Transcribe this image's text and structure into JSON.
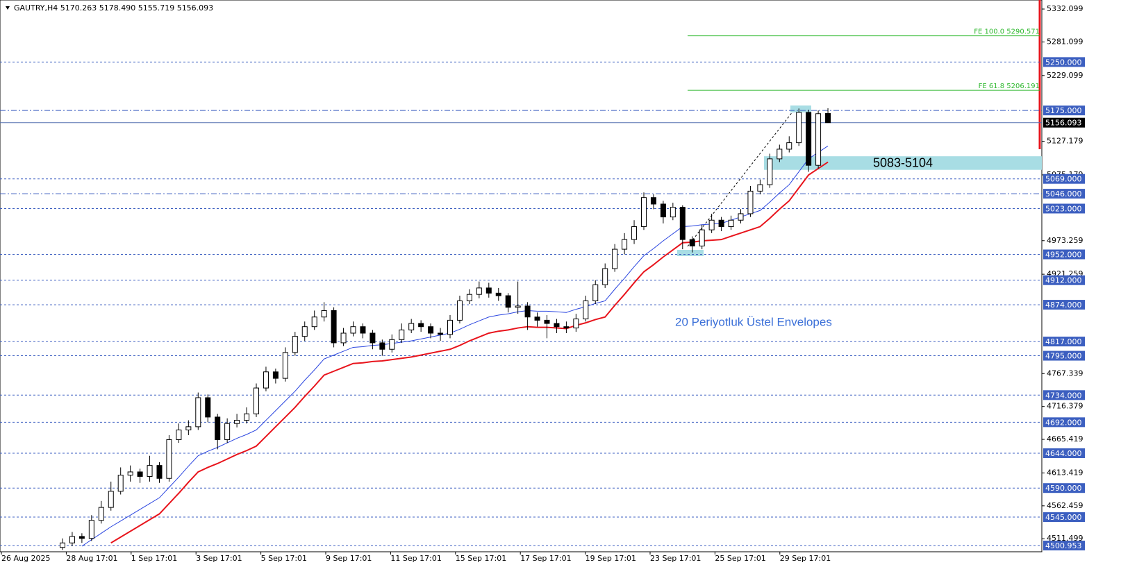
{
  "chart_data": {
    "type": "candlestick",
    "title": "GAUTRY,H4  5170.263 5178.490 5155.719 5156.093",
    "annotation": "20 Periyotluk Üstel Envelopes",
    "zone": {
      "low": 5083,
      "high": 5104,
      "label": "5083-5104",
      "color": "#a8dde4"
    },
    "ylim": [
      4491.3,
      5346.1
    ],
    "yticks": [
      5332.099,
      5281.099,
      5229.099,
      5127.179,
      5075.179,
      4973.259,
      4921.259,
      4767.339,
      4716.379,
      4665.419,
      4613.419,
      4562.459,
      4511.499
    ],
    "levels": [
      {
        "value": 5250,
        "label": "5250.000"
      },
      {
        "value": 5175,
        "label": "5175.000",
        "style": "dashdot"
      },
      {
        "value": 5069,
        "label": "5069.000"
      },
      {
        "value": 5046,
        "label": "5046.000",
        "style": "dashdot"
      },
      {
        "value": 5023,
        "label": "5023.000"
      },
      {
        "value": 4952,
        "label": "4952.000"
      },
      {
        "value": 4912,
        "label": "4912.000"
      },
      {
        "value": 4874,
        "label": "4874.000"
      },
      {
        "value": 4817,
        "label": "4817.000"
      },
      {
        "value": 4795,
        "label": "4795.000"
      },
      {
        "value": 4734,
        "label": "4734.000"
      },
      {
        "value": 4692,
        "label": "4692.000"
      },
      {
        "value": 4644,
        "label": "4644.000"
      },
      {
        "value": 4590,
        "label": "4590.000"
      },
      {
        "value": 4545,
        "label": "4545.000"
      },
      {
        "value": 4500.953,
        "label": "4500.953"
      }
    ],
    "current": {
      "value": 5156.093,
      "label": "5156.093"
    },
    "fib": [
      {
        "value": 5290.571,
        "label": "FE 100.0 5290.571"
      },
      {
        "value": 5206.191,
        "label": "FE 61.8 5206.191"
      }
    ],
    "fib_color": "#2eb82e",
    "level_color": "#3c5fc0",
    "x_labels": [
      "26 Aug 2025",
      "28 Aug 17:01",
      "1 Sep 17:01",
      "3 Sep 17:01",
      "5 Sep 17:01",
      "9 Sep 17:01",
      "11 Sep 17:01",
      "15 Sep 17:01",
      "17 Sep 17:01",
      "19 Sep 17:01",
      "23 Sep 17:01",
      "25 Sep 17:01",
      "29 Sep 17:01"
    ],
    "open": [
      4498,
      4505,
      4515,
      4512,
      4540,
      4560,
      4585,
      4610,
      4615,
      4608,
      4625,
      4605,
      4665,
      4680,
      4685,
      4730,
      4700,
      4665,
      4690,
      4695,
      4705,
      4745,
      4770,
      4760,
      4800,
      4825,
      4840,
      4855,
      4865,
      4815,
      4830,
      4840,
      4830,
      4815,
      4805,
      4820,
      4835,
      4845,
      4840,
      4830,
      4828,
      4850,
      4880,
      4890,
      4900,
      4892,
      4888,
      4870,
      4872,
      4855,
      4850,
      4845,
      4840,
      4838,
      4852,
      4880,
      4905,
      4930,
      4960,
      4975,
      4995,
      5040,
      5030,
      5010,
      5025,
      4975,
      4965,
      4990,
      5005,
      4995,
      5005,
      5015,
      5050,
      5060,
      5100,
      5115,
      5125,
      5172,
      5090,
      5170.263
    ],
    "high": [
      4512,
      4522,
      4520,
      4548,
      4570,
      4600,
      4622,
      4625,
      4620,
      4640,
      4630,
      4672,
      4690,
      4695,
      4738,
      4735,
      4705,
      4698,
      4705,
      4715,
      4752,
      4778,
      4775,
      4808,
      4832,
      4848,
      4865,
      4878,
      4870,
      4838,
      4848,
      4845,
      4835,
      4820,
      4828,
      4845,
      4852,
      4850,
      4845,
      4838,
      4858,
      4888,
      4898,
      4910,
      4908,
      4900,
      4892,
      4910,
      4878,
      4862,
      4858,
      4852,
      4848,
      4860,
      4888,
      4912,
      4938,
      4968,
      4985,
      5005,
      5048,
      5045,
      5035,
      5032,
      5028,
      4980,
      4998,
      5015,
      5010,
      5012,
      5022,
      5058,
      5068,
      5108,
      5122,
      5135,
      5178,
      5176,
      5175,
      5178.49
    ],
    "low": [
      4494,
      4500,
      4505,
      4508,
      4535,
      4555,
      4580,
      4600,
      4598,
      4600,
      4598,
      4600,
      4660,
      4672,
      4680,
      4692,
      4650,
      4660,
      4684,
      4690,
      4700,
      4740,
      4752,
      4755,
      4795,
      4818,
      4835,
      4848,
      4808,
      4810,
      4825,
      4822,
      4805,
      4795,
      4800,
      4815,
      4830,
      4832,
      4822,
      4818,
      4822,
      4845,
      4875,
      4884,
      4885,
      4880,
      4862,
      4860,
      4835,
      4840,
      4822,
      4830,
      4830,
      4832,
      4848,
      4875,
      4900,
      4925,
      4952,
      4968,
      4990,
      5022,
      5000,
      5005,
      4960,
      4955,
      4960,
      4985,
      4988,
      4990,
      5000,
      5010,
      5045,
      5055,
      5095,
      5110,
      5120,
      5080,
      5085,
      5155.719
    ],
    "close": [
      4505,
      4515,
      4512,
      4540,
      4560,
      4585,
      4610,
      4615,
      4608,
      4625,
      4605,
      4665,
      4680,
      4685,
      4730,
      4700,
      4665,
      4690,
      4695,
      4705,
      4745,
      4770,
      4760,
      4800,
      4825,
      4840,
      4855,
      4865,
      4815,
      4830,
      4840,
      4830,
      4815,
      4805,
      4820,
      4835,
      4845,
      4840,
      4830,
      4828,
      4850,
      4880,
      4890,
      4900,
      4892,
      4888,
      4870,
      4872,
      4855,
      4850,
      4845,
      4840,
      4838,
      4852,
      4880,
      4905,
      4930,
      4960,
      4975,
      4995,
      5040,
      5030,
      5010,
      5025,
      4975,
      4965,
      4990,
      5005,
      4995,
      5005,
      5015,
      5050,
      5060,
      5100,
      5115,
      5125,
      5172,
      5090,
      5170,
      5156.093
    ],
    "series": [
      {
        "name": "EMA",
        "color": "#2a45e0",
        "width": 1,
        "values": [
          null,
          null,
          4500,
          4510,
          4520,
          4530,
          4539,
          4548,
          4557,
          4566,
          4575,
          4591,
          4607,
          4624,
          4640,
          4647,
          4653,
          4660,
          4667,
          4673,
          4680,
          4695,
          4710,
          4725,
          4740,
          4757,
          4773,
          4790,
          4796,
          4802,
          4808,
          4809,
          4811,
          4812,
          4814,
          4816,
          4818,
          4821,
          4824,
          4827,
          4830,
          4836,
          4843,
          4849,
          4855,
          4858,
          4860,
          4863,
          4865,
          4864,
          4864,
          4863,
          4862,
          4867,
          4871,
          4876,
          4880,
          4898,
          4915,
          4933,
          4950,
          4961,
          4973,
          4984,
          4995,
          4996,
          4998,
          4999,
          5000,
          5005,
          5010,
          5015,
          5020,
          5033,
          5047,
          5060,
          5080,
          5100,
          5110,
          5120
        ]
      },
      {
        "name": "Lower envelope",
        "color": "#e8141c",
        "width": 2,
        "values": [
          null,
          null,
          null,
          null,
          null,
          4505,
          4514,
          4523,
          4532,
          4541,
          4550,
          4566,
          4582,
          4599,
          4615,
          4622,
          4628,
          4635,
          4642,
          4648,
          4655,
          4670,
          4685,
          4700,
          4715,
          4732,
          4748,
          4765,
          4771,
          4777,
          4783,
          4784,
          4786,
          4787,
          4789,
          4791,
          4793,
          4796,
          4799,
          4802,
          4805,
          4811,
          4818,
          4824,
          4830,
          4833,
          4835,
          4838,
          4840,
          4839,
          4839,
          4838,
          4837,
          4842,
          4846,
          4851,
          4855,
          4873,
          4890,
          4908,
          4925,
          4936,
          4948,
          4959,
          4970,
          4971,
          4973,
          4974,
          4975,
          4980,
          4985,
          4990,
          4995,
          5008,
          5022,
          5035,
          5055,
          5075,
          5085,
          5095
        ]
      }
    ]
  }
}
